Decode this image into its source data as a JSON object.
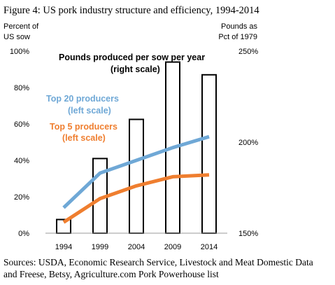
{
  "figure": {
    "title": "Figure 4: US pork industry structure and efficiency, 1994-2014",
    "source_lines": [
      "Sources: USDA, Economic Research Service, Livestock and Meat Domestic Data",
      "and Freese, Betsy, Agriculture.com Pork Powerhouse list"
    ]
  },
  "chart_data": {
    "type": "bar",
    "categories": [
      "1994",
      "1999",
      "2004",
      "2009",
      "2014"
    ],
    "left_axis": {
      "label_lines": [
        "Percent of",
        "US sow"
      ],
      "ylim": [
        0,
        100
      ],
      "ticks": [
        "0%",
        "20%",
        "40%",
        "60%",
        "80%",
        "100%"
      ],
      "tick_values": [
        0,
        20,
        40,
        60,
        80,
        100
      ]
    },
    "right_axis": {
      "label_lines": [
        "Pounds as",
        "Pct of 1979"
      ],
      "ylim": [
        150,
        250
      ],
      "ticks": [
        "150%",
        "200%",
        "250%"
      ],
      "tick_values": [
        150,
        200,
        250
      ]
    },
    "series": [
      {
        "name": "Pounds produced per sow per year (right scale)",
        "label_lines": [
          "Pounds produced per sow per year",
          "(right scale)"
        ],
        "type": "bar",
        "axis": "right",
        "color": "#000000",
        "values": [
          157.5,
          191,
          212.5,
          244,
          237
        ]
      },
      {
        "name": "Top 20 producers (left scale)",
        "label_lines": [
          "Top 20 producers",
          "(left scale)"
        ],
        "type": "line",
        "axis": "left",
        "color": "#6fa8d6",
        "values": [
          14,
          33,
          40,
          47,
          53
        ]
      },
      {
        "name": "Top 5 producers (left scale)",
        "label_lines": [
          "Top 5 producers",
          "(left scale)"
        ],
        "type": "line",
        "axis": "left",
        "color": "#ef7e2f",
        "values": [
          6,
          19,
          26,
          31,
          32
        ]
      }
    ],
    "grid": false
  }
}
